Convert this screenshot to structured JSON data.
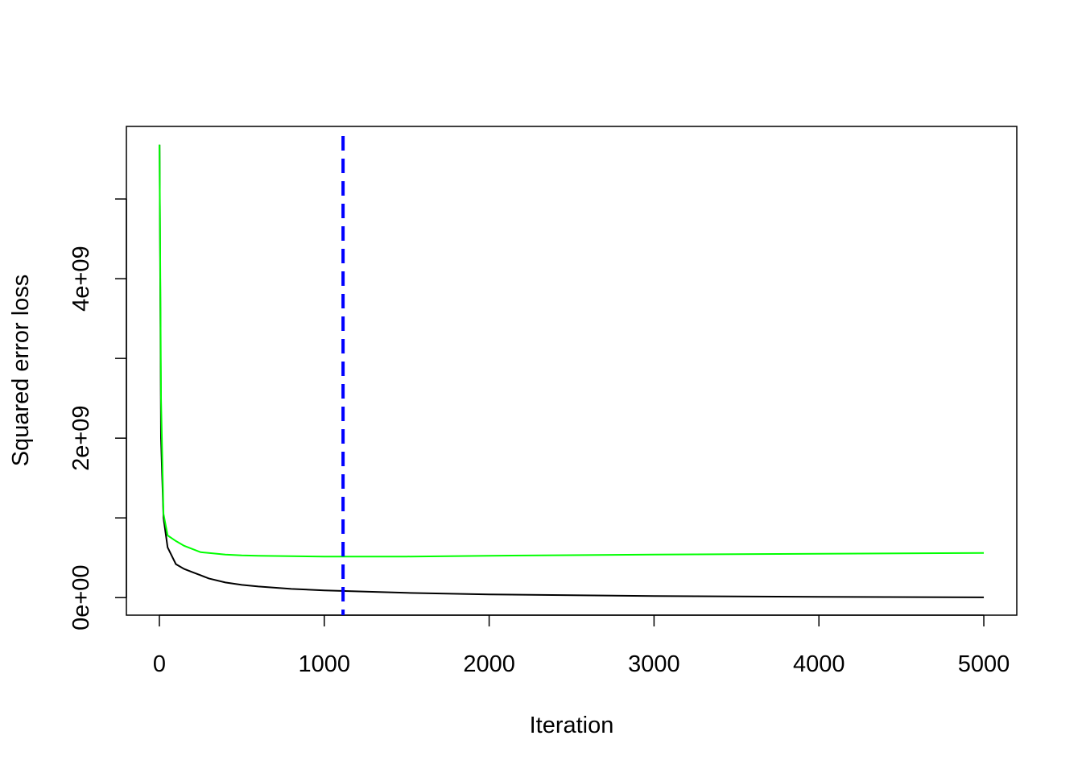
{
  "chart_data": {
    "type": "line",
    "xlabel": "Iteration",
    "ylabel": "Squared error loss",
    "x": [
      1,
      10,
      25,
      50,
      100,
      150,
      200,
      250,
      300,
      400,
      500,
      600,
      800,
      1000,
      1500,
      2000,
      3000,
      4000,
      5000
    ],
    "series": [
      {
        "color": "#000000",
        "values": [
          5680000000,
          2000000000,
          1000000000,
          630000000,
          420000000,
          360000000,
          320000000,
          280000000,
          240000000,
          190000000,
          160000000,
          140000000,
          110000000,
          90000000,
          60000000,
          40000000,
          20000000,
          10000000,
          3000000
        ]
      },
      {
        "color": "#00ff00",
        "values": [
          5680000000,
          2500000000,
          1050000000,
          780000000,
          710000000,
          650000000,
          610000000,
          570000000,
          560000000,
          540000000,
          530000000,
          525000000,
          520000000,
          515000000,
          515000000,
          525000000,
          540000000,
          550000000,
          560000000
        ]
      }
    ],
    "vline": 1114,
    "vline_color": "#0000ff",
    "xlim": [
      -200,
      5200
    ],
    "xticks": [
      0,
      1000,
      2000,
      3000,
      4000,
      5000
    ],
    "ylim": [
      -220000000,
      5910000000
    ],
    "yticks": [
      {
        "value": 0,
        "label": "0e+00"
      },
      1000000000,
      {
        "value": 2000000000,
        "label": "2e+09"
      },
      3000000000,
      {
        "value": 4000000000,
        "label": "4e+09"
      },
      5000000000
    ]
  }
}
